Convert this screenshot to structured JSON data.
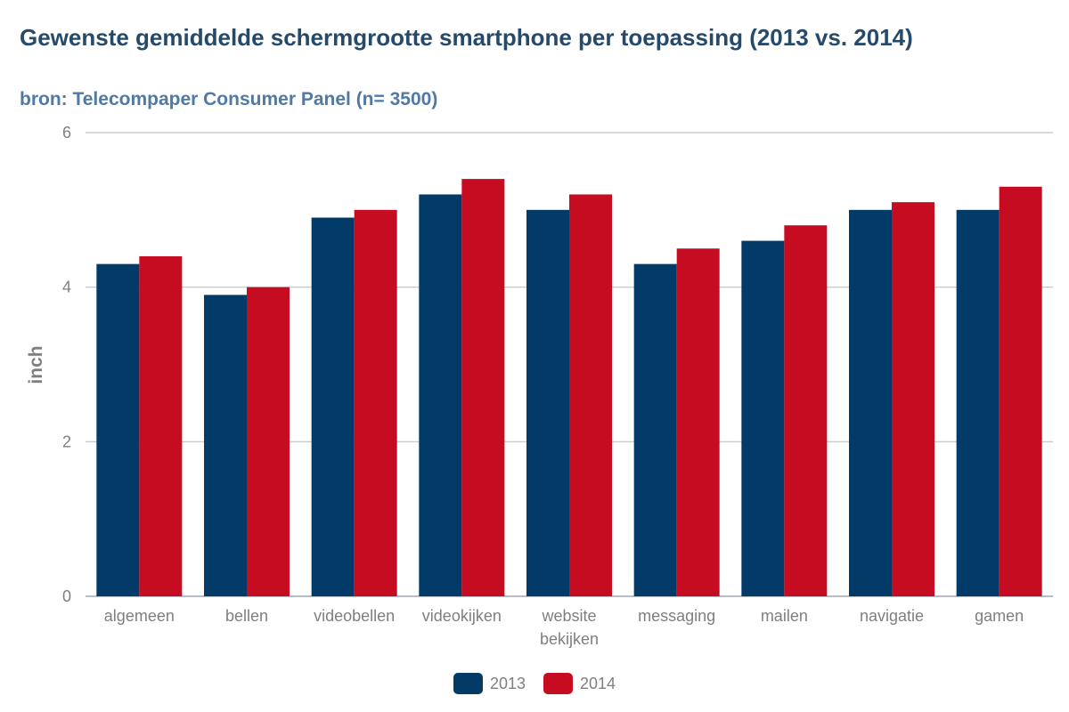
{
  "chart_data": {
    "type": "bar",
    "title": "Gewenste gemiddelde schermgrootte smartphone per toepassing (2013 vs. 2014)",
    "subtitle": "bron: Telecompaper Consumer Panel (n= 3500)",
    "ylabel": "inch",
    "ylim": [
      0,
      6
    ],
    "yticks": [
      "0",
      "2",
      "4",
      "6"
    ],
    "categories": [
      "algemeen",
      "bellen",
      "videobellen",
      "videokijken",
      "website\nbekijken",
      "messaging",
      "mailen",
      "navigatie",
      "gamen"
    ],
    "series": [
      {
        "name": "2013",
        "color": "#023a68",
        "values": [
          4.3,
          3.9,
          4.9,
          5.2,
          5.0,
          4.3,
          4.6,
          5.0,
          5.0
        ]
      },
      {
        "name": "2014",
        "color": "#c60c20",
        "values": [
          4.4,
          4.0,
          5.0,
          5.4,
          5.2,
          4.5,
          4.8,
          5.1,
          5.3
        ]
      }
    ],
    "grid": true,
    "legend_position": "bottom"
  }
}
